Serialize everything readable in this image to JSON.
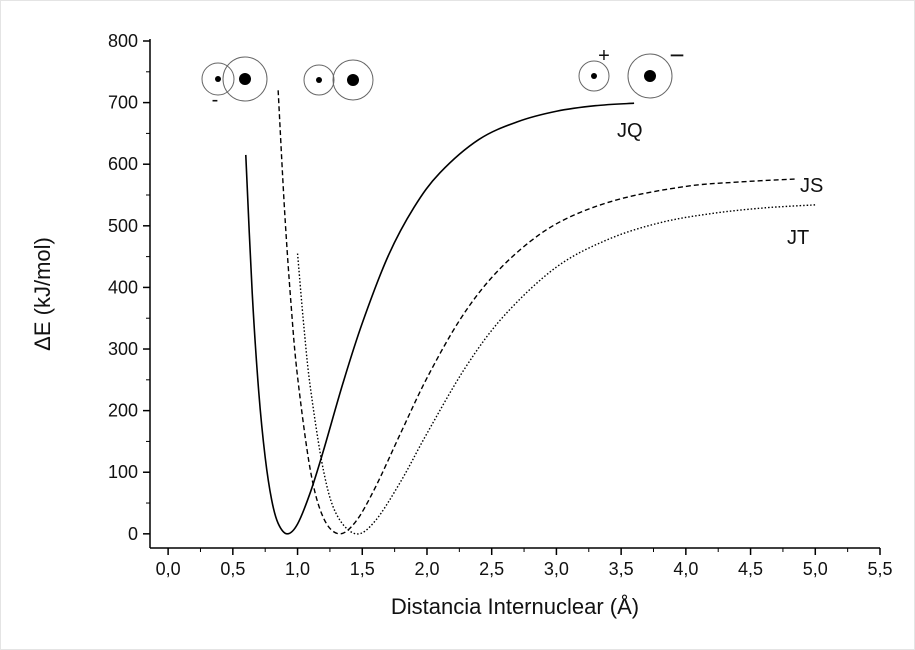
{
  "chart_data": {
    "type": "line",
    "x_label": "Distancia Internuclear (Å)",
    "y_label": "ΔE (kJ/mol)",
    "xlim": [
      -0.14,
      5.5
    ],
    "ylim": [
      -23,
      800
    ],
    "xticks": [
      {
        "value": 0,
        "label": "0,0"
      },
      {
        "value": 0.5,
        "label": "0,5"
      },
      {
        "value": 1,
        "label": "1,0"
      },
      {
        "value": 1.5,
        "label": "1,5"
      },
      {
        "value": 2,
        "label": "2,0"
      },
      {
        "value": 2.5,
        "label": "2,5"
      },
      {
        "value": 3,
        "label": "3,0"
      },
      {
        "value": 3.5,
        "label": "3,5"
      },
      {
        "value": 4,
        "label": "4,0"
      },
      {
        "value": 4.5,
        "label": "4,5"
      },
      {
        "value": 5,
        "label": "5,0"
      },
      {
        "value": 5.5,
        "label": "5,5"
      }
    ],
    "yticks": [
      0,
      100,
      200,
      300,
      400,
      500,
      600,
      700,
      800
    ],
    "minor_xticks": [
      0.25,
      0.75,
      1.25,
      1.75,
      2.25,
      2.75,
      3.25,
      3.75,
      4.25,
      4.75,
      5.25
    ],
    "minor_yticks": [
      50,
      150,
      250,
      350,
      450,
      550,
      650,
      750
    ],
    "series": [
      {
        "name": "JQ",
        "color": "#000000",
        "dash": "solid",
        "x": [
          0.6,
          0.65,
          0.7,
          0.75,
          0.8,
          0.85,
          0.92,
          1.0,
          1.1,
          1.2,
          1.35,
          1.5,
          1.7,
          1.9,
          2.1,
          2.4,
          2.7,
          3.0,
          3.3,
          3.6
        ],
        "values": [
          615,
          390,
          231,
          124,
          55,
          17,
          0,
          16,
          68,
          135,
          244,
          342,
          451,
          530,
          586,
          640,
          669,
          686,
          695,
          699
        ]
      },
      {
        "name": "JS",
        "color": "#000000",
        "dash": "dashed",
        "x": [
          0.85,
          0.9,
          0.95,
          1.0,
          1.1,
          1.2,
          1.32,
          1.45,
          1.6,
          1.8,
          2.0,
          2.25,
          2.5,
          2.8,
          3.1,
          3.5,
          4.0,
          4.4,
          4.85
        ],
        "values": [
          720,
          524,
          372,
          255,
          102,
          26,
          0,
          20,
          75,
          165,
          253,
          346,
          416,
          475,
          514,
          544,
          564,
          571,
          576
        ]
      },
      {
        "name": "JT",
        "color": "#000000",
        "dash": "dotted",
        "x": [
          1.0,
          1.05,
          1.1,
          1.2,
          1.3,
          1.45,
          1.6,
          1.8,
          2.0,
          2.3,
          2.6,
          3.0,
          3.4,
          3.8,
          4.2,
          4.6,
          5.0
        ],
        "values": [
          455,
          334,
          236,
          103,
          32,
          0,
          21,
          86,
          163,
          271,
          355,
          433,
          478,
          505,
          520,
          529,
          534
        ]
      }
    ],
    "annotations": [
      "-",
      "+",
      "−"
    ]
  }
}
